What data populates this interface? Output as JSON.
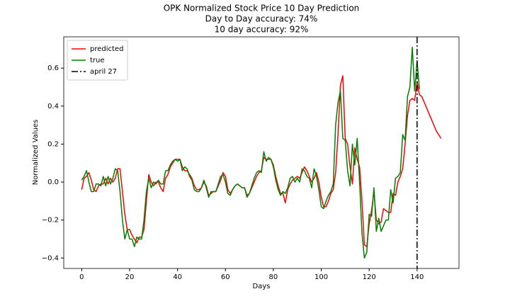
{
  "chart_data": {
    "type": "line",
    "title": "OPK Normalized Stock Price 10 Day Prediction",
    "subtitles": [
      "Day to Day accuracy: 74%",
      "10 day accuracy: 92%"
    ],
    "x_label": "Days",
    "y_label": "Normalized Values",
    "x": [
      0,
      1,
      2,
      3,
      4,
      5,
      6,
      7,
      8,
      9,
      10,
      11,
      12,
      13,
      14,
      15,
      16,
      17,
      18,
      19,
      20,
      21,
      22,
      23,
      24,
      25,
      26,
      27,
      28,
      29,
      30,
      31,
      32,
      33,
      34,
      35,
      36,
      37,
      38,
      39,
      40,
      41,
      42,
      43,
      44,
      45,
      46,
      47,
      48,
      49,
      50,
      51,
      52,
      53,
      54,
      55,
      56,
      57,
      58,
      59,
      60,
      61,
      62,
      63,
      64,
      65,
      66,
      67,
      68,
      69,
      70,
      71,
      72,
      73,
      74,
      75,
      76,
      77,
      78,
      79,
      80,
      81,
      82,
      83,
      84,
      85,
      86,
      87,
      88,
      89,
      90,
      91,
      92,
      93,
      94,
      95,
      96,
      97,
      98,
      99,
      100,
      101,
      102,
      103,
      104,
      105,
      106,
      107,
      108,
      109,
      110,
      111,
      112,
      113,
      114,
      115,
      116,
      117,
      118,
      119,
      120,
      121,
      122,
      123,
      124,
      125,
      126,
      127,
      128,
      129,
      130,
      131,
      132,
      133,
      134,
      135,
      136,
      137,
      138,
      139,
      140,
      141,
      142,
      143,
      144,
      145,
      146,
      147,
      148,
      149,
      150
    ],
    "series": [
      {
        "name": "predicted",
        "color": "#ff0000",
        "values": [
          -0.04,
          0.02,
          0.03,
          0.05,
          0.01,
          -0.04,
          -0.05,
          -0.02,
          -0.01,
          -0.01,
          0.02,
          -0.01,
          0.02,
          0.0,
          0.02,
          0.07,
          0.07,
          -0.05,
          -0.17,
          -0.25,
          -0.25,
          -0.28,
          -0.3,
          -0.32,
          -0.29,
          -0.29,
          -0.25,
          -0.1,
          0.04,
          0.0,
          -0.02,
          0.0,
          0.0,
          -0.03,
          -0.05,
          0.02,
          0.04,
          0.08,
          0.1,
          0.12,
          0.12,
          0.12,
          0.08,
          0.06,
          0.06,
          0.04,
          0.02,
          -0.02,
          -0.04,
          -0.04,
          -0.03,
          0.0,
          -0.02,
          -0.07,
          -0.06,
          -0.05,
          -0.05,
          -0.02,
          0.01,
          0.05,
          0.03,
          -0.04,
          -0.06,
          -0.04,
          -0.02,
          -0.01,
          -0.02,
          -0.03,
          -0.03,
          -0.07,
          -0.06,
          -0.03,
          0.0,
          0.03,
          0.05,
          0.06,
          0.13,
          0.12,
          0.12,
          0.12,
          0.09,
          0.03,
          -0.02,
          -0.06,
          -0.06,
          -0.11,
          -0.04,
          -0.01,
          0.01,
          0.02,
          0.03,
          0.02,
          0.05,
          0.08,
          0.06,
          0.03,
          0.0,
          0.02,
          0.05,
          0.0,
          -0.08,
          -0.13,
          -0.13,
          -0.1,
          -0.06,
          -0.04,
          0.05,
          0.25,
          0.51,
          0.56,
          0.23,
          0.2,
          0.08,
          -0.01,
          0.18,
          0.12,
          0.08,
          -0.1,
          -0.33,
          -0.34,
          -0.22,
          -0.15,
          -0.05,
          -0.2,
          -0.22,
          -0.21,
          -0.14,
          -0.15,
          -0.16,
          -0.16,
          -0.06,
          -0.07,
          0.0,
          0.03,
          0.07,
          0.2,
          0.35,
          0.43,
          0.44,
          0.43,
          0.53,
          0.46,
          0.45,
          0.42,
          0.39,
          0.36,
          0.33,
          0.3,
          0.27,
          0.25,
          0.23
        ]
      },
      {
        "name": "true",
        "color": "#008000",
        "values": [
          0.01,
          0.03,
          0.06,
          0.0,
          -0.05,
          -0.05,
          -0.01,
          -0.01,
          -0.02,
          0.03,
          -0.02,
          0.03,
          -0.01,
          0.02,
          0.07,
          0.06,
          -0.05,
          -0.2,
          -0.3,
          -0.25,
          -0.3,
          -0.3,
          -0.34,
          -0.29,
          -0.3,
          -0.3,
          -0.2,
          -0.05,
          0.02,
          -0.03,
          0.0,
          -0.01,
          0.01,
          -0.01,
          -0.01,
          0.06,
          0.06,
          0.09,
          0.11,
          0.12,
          0.11,
          0.12,
          0.06,
          0.08,
          0.07,
          0.03,
          0.01,
          -0.04,
          -0.05,
          -0.05,
          -0.03,
          0.01,
          -0.03,
          -0.08,
          -0.05,
          -0.05,
          -0.05,
          -0.01,
          0.03,
          0.04,
          0.0,
          -0.06,
          -0.07,
          -0.04,
          -0.02,
          -0.01,
          -0.02,
          -0.03,
          -0.03,
          -0.08,
          -0.06,
          -0.02,
          0.02,
          0.05,
          0.06,
          0.05,
          0.16,
          0.11,
          0.13,
          0.12,
          0.08,
          0.01,
          -0.04,
          -0.07,
          -0.05,
          -0.06,
          -0.03,
          0.02,
          0.03,
          0.0,
          0.02,
          0.0,
          0.07,
          0.06,
          0.03,
          0.02,
          -0.03,
          0.07,
          0.03,
          -0.04,
          -0.13,
          -0.14,
          -0.1,
          -0.07,
          -0.05,
          -0.01,
          0.3,
          0.42,
          0.48,
          0.23,
          0.22,
          0.06,
          -0.02,
          0.2,
          0.09,
          0.23,
          0.0,
          -0.27,
          -0.4,
          -0.37,
          -0.17,
          -0.18,
          -0.03,
          -0.26,
          -0.19,
          -0.26,
          -0.23,
          -0.2,
          -0.2,
          -0.04,
          -0.11,
          0.02,
          0.03,
          0.05,
          0.25,
          0.22,
          0.45,
          0.5,
          0.71,
          0.48,
          0.64,
          0.49,
          null,
          null,
          null,
          null,
          null,
          null,
          null,
          null,
          null
        ]
      }
    ],
    "vline": {
      "x": 140,
      "label": "april 27",
      "color": "#000000"
    },
    "xlim": [
      -7.5,
      157.5
    ],
    "ylim": [
      -0.455,
      0.765
    ],
    "xticks": [
      0,
      20,
      40,
      60,
      80,
      100,
      120,
      140
    ],
    "yticks": [
      {
        "value": -0.4,
        "label": "−0.4"
      },
      {
        "value": -0.2,
        "label": "−0.2"
      },
      {
        "value": 0,
        "label": "0.0"
      },
      0.2,
      0.4,
      0.6
    ],
    "legend": "upper left",
    "grid": false
  }
}
